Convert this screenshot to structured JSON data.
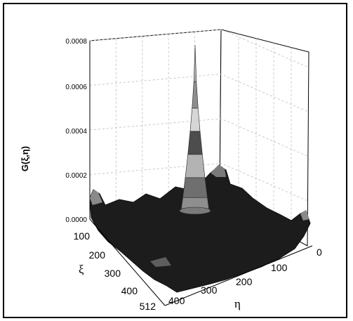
{
  "chart_data": {
    "type": "surface3d",
    "zlabel": "G(ξ,η)",
    "xlabel": "η",
    "ylabel": "ξ",
    "z_ticks": [
      "0.0000",
      "0.0002",
      "0.0004",
      "0.0006",
      "0.0008"
    ],
    "zlim": [
      0,
      0.0008
    ],
    "eta_ticks": [
      "0",
      "100",
      "200",
      "300",
      "400"
    ],
    "xi_ticks": [
      "100",
      "200",
      "300",
      "400",
      "512"
    ],
    "eta_range": [
      0,
      512
    ],
    "xi_range": [
      0,
      512
    ],
    "peak": {
      "xi": 256,
      "eta": 256,
      "value": 0.00078
    },
    "color_bands": [
      "#1b1b1b",
      "#4d4d4d",
      "#6f6f6f",
      "#8e8e8e",
      "#b3b3b3",
      "#d6d6d6",
      "#ffffff"
    ],
    "grid": true
  }
}
